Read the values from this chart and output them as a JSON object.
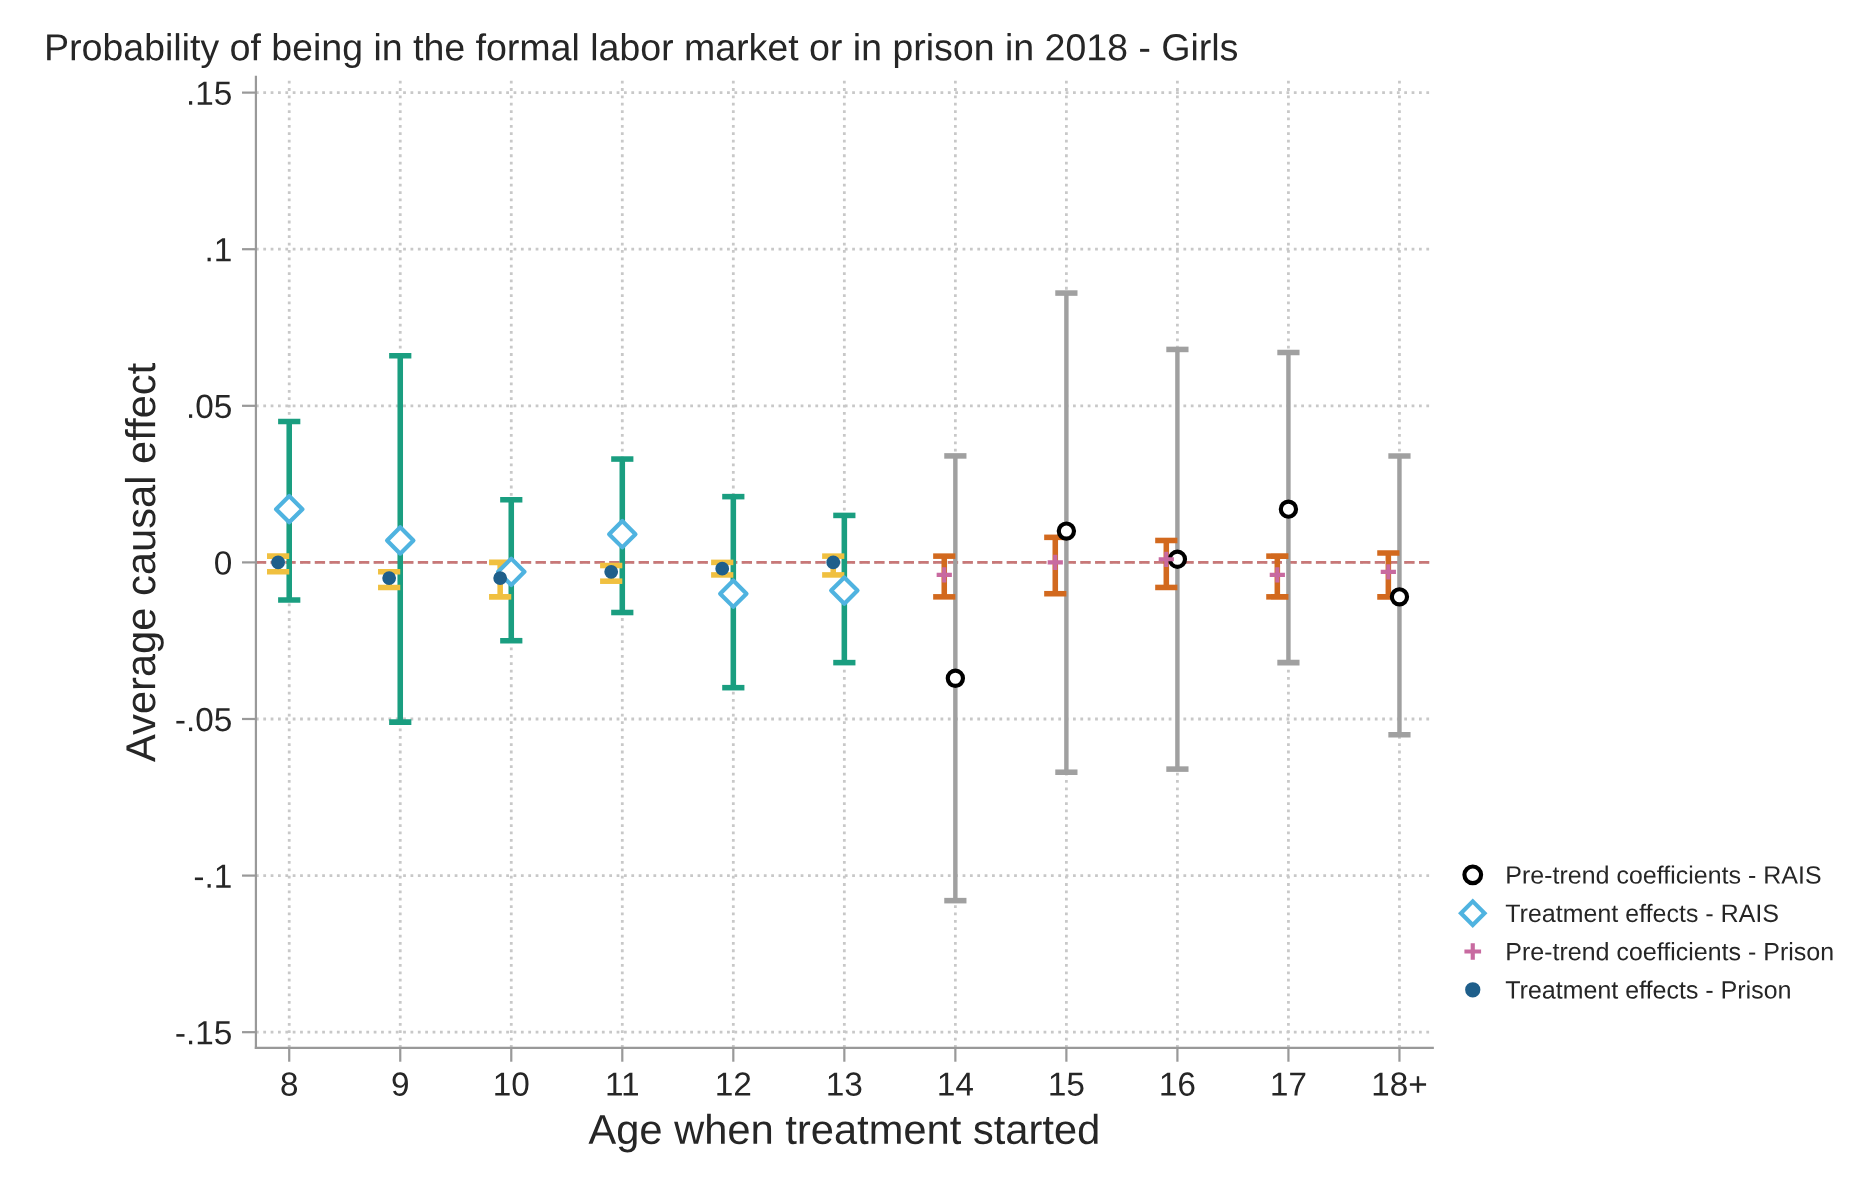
{
  "chart_data": {
    "type": "scatter",
    "title": "Probability of being in the formal labor market or in prison in 2018 - Girls",
    "xlabel": "Age when treatment started",
    "ylabel": "Average causal effect",
    "categories": [
      "8",
      "9",
      "10",
      "11",
      "12",
      "13",
      "14",
      "15",
      "16",
      "17",
      "18+"
    ],
    "series": [
      {
        "name": "Pre-trend coefficients - RAIS",
        "color": "#000000",
        "marker": "circle",
        "values": [
          null,
          null,
          null,
          null,
          null,
          null,
          -0.037,
          0.01,
          0.001,
          0.017,
          -0.011
        ],
        "errors": [
          null,
          null,
          null,
          null,
          null,
          null,
          [
            -0.108,
            0.034
          ],
          [
            -0.067,
            0.086
          ],
          [
            -0.066,
            0.068
          ],
          [
            -0.032,
            0.067
          ],
          [
            -0.055,
            0.034
          ]
        ]
      },
      {
        "name": "Treatment effects - RAIS",
        "color": "#4fb3e0",
        "marker": "diamond",
        "values": [
          0.017,
          0.007,
          -0.003,
          0.009,
          -0.01,
          -0.009,
          null,
          null,
          null,
          null,
          null
        ],
        "errors": [
          [
            -0.012,
            0.045
          ],
          [
            -0.051,
            0.066
          ],
          [
            -0.025,
            0.02
          ],
          [
            -0.016,
            0.033
          ],
          [
            -0.04,
            0.021
          ],
          [
            -0.032,
            0.015
          ],
          null,
          null,
          null,
          null,
          null
        ]
      },
      {
        "name": "Pre-trend coefficients - Prison",
        "color": "#c86aa0",
        "marker": "cross",
        "values": [
          null,
          null,
          null,
          null,
          null,
          null,
          -0.004,
          0.0,
          0.001,
          -0.004,
          -0.003
        ],
        "errors": [
          null,
          null,
          null,
          null,
          null,
          null,
          [
            -0.011,
            0.002
          ],
          [
            -0.01,
            0.008
          ],
          [
            -0.008,
            0.007
          ],
          [
            -0.011,
            0.002
          ],
          [
            -0.011,
            0.003
          ]
        ]
      },
      {
        "name": "Treatment effects - Prison",
        "color": "#1f5f8b",
        "marker": "circle",
        "values": [
          0.0,
          -0.005,
          -0.005,
          -0.003,
          -0.002,
          0.0,
          null,
          null,
          null,
          null,
          null
        ],
        "errors": [
          [
            -0.003,
            0.002
          ],
          [
            -0.008,
            -0.003
          ],
          [
            -0.011,
            0.0
          ],
          [
            -0.006,
            -0.001
          ],
          [
            -0.004,
            0.0
          ],
          [
            -0.004,
            0.002
          ],
          null,
          null,
          null,
          null,
          null
        ]
      }
    ],
    "ylim": [
      -0.155,
      0.155
    ],
    "yticks": [
      {
        "value": -0.15,
        "label": "-.15"
      },
      {
        "value": -0.1,
        "label": "-.1"
      },
      {
        "value": -0.05,
        "label": "-.05"
      },
      0,
      {
        "value": 0.05,
        "label": ".05"
      },
      {
        "value": 0.1,
        "label": ".1"
      },
      {
        "value": 0.15,
        "label": ".15"
      }
    ],
    "ref_lines": [
      {
        "axis": "y",
        "value": 0,
        "color": "#c87878",
        "line_style": "dashed"
      }
    ],
    "grid": true,
    "legend": "bottom right"
  }
}
